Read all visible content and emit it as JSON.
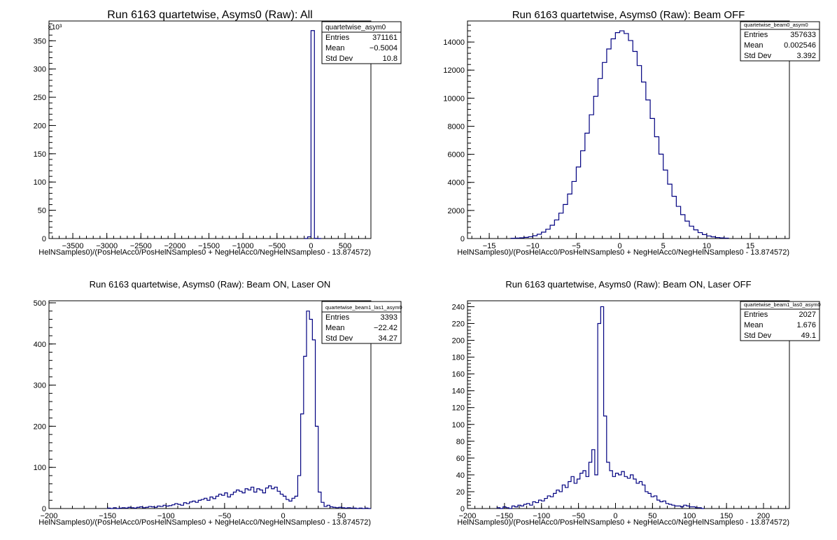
{
  "colors": {
    "line": "#000080",
    "axis": "#000000",
    "background": "#ffffff"
  },
  "chart_data": [
    {
      "type": "histogram",
      "title": "Run 6163 quartetwise, Asyms0 (Raw): All",
      "xlabel": "HelNSamples0)/(PosHelAcc0/PosHelNSamples0 + NegHelAcc0/NegHelNSamples0 - 13.874572)",
      "ylabel": "",
      "xlim": [
        -3850,
        880
      ],
      "ylim": [
        0,
        385000
      ],
      "y_multiplier": "×10³",
      "y_scale": 1000,
      "xticks": [
        -3500,
        -3000,
        -2500,
        -2000,
        -1500,
        -1000,
        -500,
        0,
        500
      ],
      "yticks": [
        0,
        50000,
        100000,
        150000,
        200000,
        250000,
        300000,
        350000
      ],
      "ytick_labels": [
        "0",
        "50",
        "100",
        "150",
        "200",
        "250",
        "300",
        "350"
      ],
      "bins": [
        [
          -100,
          0
        ],
        [
          -50,
          3000
        ],
        [
          0,
          368000
        ],
        [
          50,
          300
        ],
        [
          100,
          0
        ]
      ],
      "stats": {
        "name": "quartetwise_asym0",
        "rows": [
          {
            "label": "Entries",
            "value": "371161"
          },
          {
            "label": "Mean",
            "value": "−0.5004"
          },
          {
            "label": "Std Dev",
            "value": "10.8"
          }
        ]
      }
    },
    {
      "type": "histogram",
      "title": "Run 6163 quartetwise, Asyms0 (Raw): Beam OFF",
      "xlabel": "HelNSamples0)/(PosHelAcc0/PosHelNSamples0 + NegHelAcc0/NegHelNSamples0 - 13.874572)",
      "ylabel": "",
      "xlim": [
        -17.5,
        19.5
      ],
      "ylim": [
        0,
        15500
      ],
      "xticks": [
        -15,
        -10,
        -5,
        0,
        5,
        10,
        15
      ],
      "yticks": [
        0,
        2000,
        4000,
        6000,
        8000,
        10000,
        12000,
        14000
      ],
      "ytick_labels": [
        "0",
        "2000",
        "4000",
        "6000",
        "8000",
        "10000",
        "12000",
        "14000"
      ],
      "gauss": {
        "mean": 0.2,
        "sigma": 3.39,
        "peak": 14800,
        "xmin": -12.5,
        "xmax": 12.5,
        "width": 0.5
      },
      "stats": {
        "name": "quartetwise_beam0_asym0",
        "rows": [
          {
            "label": "Entries",
            "value": "357633"
          },
          {
            "label": "Mean",
            "value": "0.002546"
          },
          {
            "label": "Std Dev",
            "value": "3.392"
          }
        ]
      }
    },
    {
      "type": "histogram",
      "title": "Run 6163 quartetwise, Asyms0 (Raw): Beam ON, Laser ON",
      "xlabel": "HelNSamples0)/(PosHelAcc0/PosHelNSamples0 + NegHelAcc0/NegHelNSamples0 - 13.874572)",
      "ylabel": "",
      "xlim": [
        -200,
        75
      ],
      "ylim": [
        0,
        505
      ],
      "xticks": [
        -200,
        -150,
        -100,
        -50,
        0,
        50
      ],
      "yticks": [
        0,
        100,
        200,
        300,
        400,
        500
      ],
      "ytick_labels": [
        "0",
        "100",
        "200",
        "300",
        "400",
        "500"
      ],
      "bin_start": -150,
      "bin_width": 2.5,
      "values": [
        1,
        0,
        2,
        0,
        1,
        2,
        1,
        3,
        2,
        1,
        3,
        4,
        2,
        3,
        5,
        4,
        3,
        6,
        5,
        8,
        6,
        7,
        9,
        12,
        10,
        8,
        14,
        12,
        16,
        18,
        15,
        20,
        22,
        25,
        20,
        28,
        24,
        30,
        35,
        32,
        38,
        28,
        34,
        40,
        45,
        42,
        38,
        48,
        45,
        52,
        40,
        48,
        45,
        38,
        50,
        55,
        48,
        52,
        42,
        35,
        30,
        22,
        18,
        25,
        30,
        80,
        230,
        370,
        480,
        460,
        410,
        200,
        40,
        15,
        5,
        8,
        4,
        3,
        2,
        3,
        2,
        1,
        2,
        1,
        1,
        0,
        1,
        0,
        1,
        0
      ],
      "stats": {
        "name": "quartetwise_beam1_las1_asym0",
        "rows": [
          {
            "label": "Entries",
            "value": "3393"
          },
          {
            "label": "Mean",
            "value": "−22.42"
          },
          {
            "label": "Std Dev",
            "value": "34.27"
          }
        ]
      }
    },
    {
      "type": "histogram",
      "title": "Run 6163 quartetwise, Asyms0 (Raw): Beam ON, Laser OFF",
      "xlabel": "HelNSamples0)/(PosHelAcc0/PosHelNSamples0 + NegHelAcc0/NegHelNSamples0 - 13.874572)",
      "ylabel": "",
      "xlim": [
        -200,
        235
      ],
      "ylim": [
        0,
        247
      ],
      "xticks": [
        -200,
        -150,
        -100,
        -50,
        0,
        50,
        100,
        150,
        200
      ],
      "yticks": [
        0,
        20,
        40,
        60,
        80,
        100,
        120,
        140,
        160,
        180,
        200,
        220,
        240
      ],
      "ytick_labels": [
        "0",
        "20",
        "40",
        "60",
        "80",
        "100",
        "120",
        "140",
        "160",
        "180",
        "200",
        "220",
        "240"
      ],
      "bin_start": -160,
      "bin_width": 4,
      "values": [
        1,
        0,
        2,
        1,
        0,
        3,
        2,
        4,
        3,
        5,
        6,
        4,
        8,
        7,
        10,
        9,
        12,
        15,
        14,
        18,
        22,
        20,
        28,
        25,
        32,
        38,
        30,
        35,
        42,
        45,
        38,
        55,
        70,
        40,
        220,
        240,
        110,
        55,
        45,
        38,
        42,
        40,
        44,
        38,
        36,
        40,
        35,
        30,
        32,
        28,
        20,
        18,
        14,
        15,
        10,
        8,
        9,
        6,
        5,
        4,
        3,
        3,
        2,
        4,
        3,
        2,
        2,
        1,
        1,
        0
      ],
      "stats": {
        "name": "quartetwise_beam1_las0_asym0",
        "rows": [
          {
            "label": "Entries",
            "value": "2027"
          },
          {
            "label": "Mean",
            "value": "1.676"
          },
          {
            "label": "Std Dev",
            "value": "49.1"
          }
        ]
      }
    }
  ]
}
